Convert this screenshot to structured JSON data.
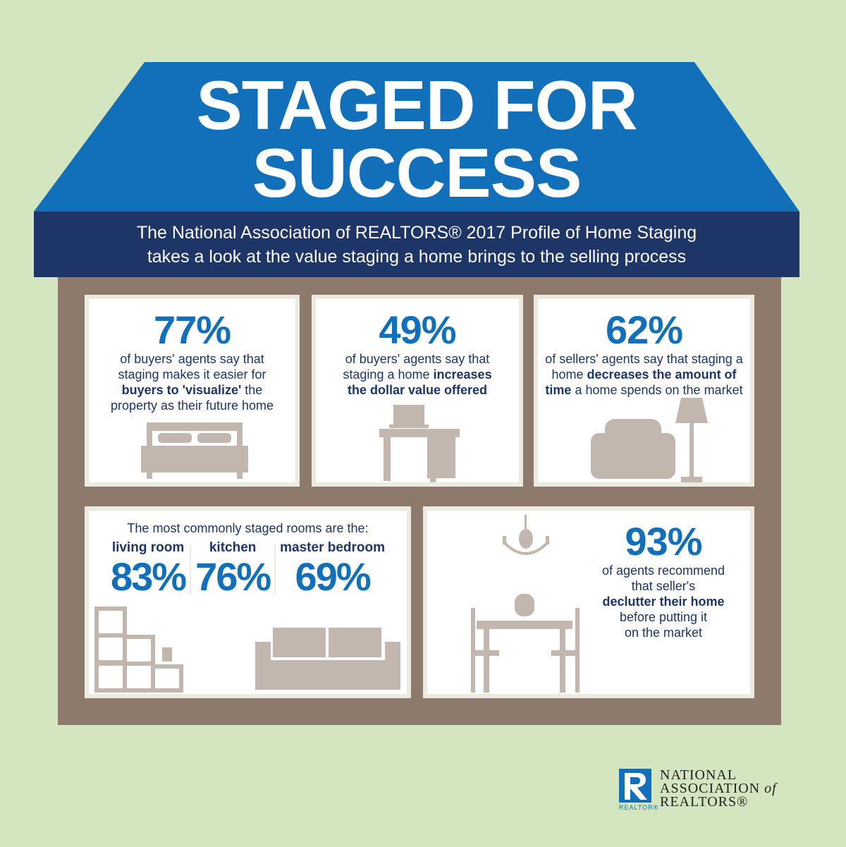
{
  "title": {
    "line1": "STAGED FOR",
    "line2": "SUCCESS"
  },
  "subtitle": {
    "line1": "The National Association of REALTORS® 2017 Profile of Home Staging",
    "line2": "takes a look at the value staging a home brings to the selling process"
  },
  "colors": {
    "background": "#d3e6c0",
    "roof": "#1270bb",
    "banner": "#1d3567",
    "wall": "#8e7a6c",
    "accent_number": "#1270bb",
    "text": "#1d3567",
    "furniture": "#c1b7ae"
  },
  "stats": [
    {
      "value": "77%",
      "pre": "of buyers' agents say that staging makes it easier for",
      "bold": "buyers to 'visualize'",
      "post": "the property as their future home",
      "icon": "bed-icon"
    },
    {
      "value": "49%",
      "pre": "of buyers' agents say that staging a home",
      "bold": "increases the dollar value offered",
      "post": "",
      "icon": "desk-icon"
    },
    {
      "value": "62%",
      "pre": "of sellers' agents say that staging a home",
      "bold": "decreases the amount of time",
      "post": "a home spends on the market",
      "icon": "armchair-lamp-icon"
    }
  ],
  "rooms": {
    "heading": "The most commonly staged rooms are the:",
    "items": [
      {
        "label": "living room",
        "value": "83%"
      },
      {
        "label": "kitchen",
        "value": "76%"
      },
      {
        "label": "master bedroom",
        "value": "69%"
      }
    ]
  },
  "declutter": {
    "value": "93%",
    "pre1": "of agents recommend",
    "pre2": "that seller's",
    "bold": "declutter their home",
    "post1": "before putting it",
    "post2": "on the market"
  },
  "logo": {
    "mark": "REALTOR®",
    "line1": "NATIONAL",
    "line2": "ASSOCIATION",
    "of": "of",
    "line3": "REALTORS®"
  }
}
